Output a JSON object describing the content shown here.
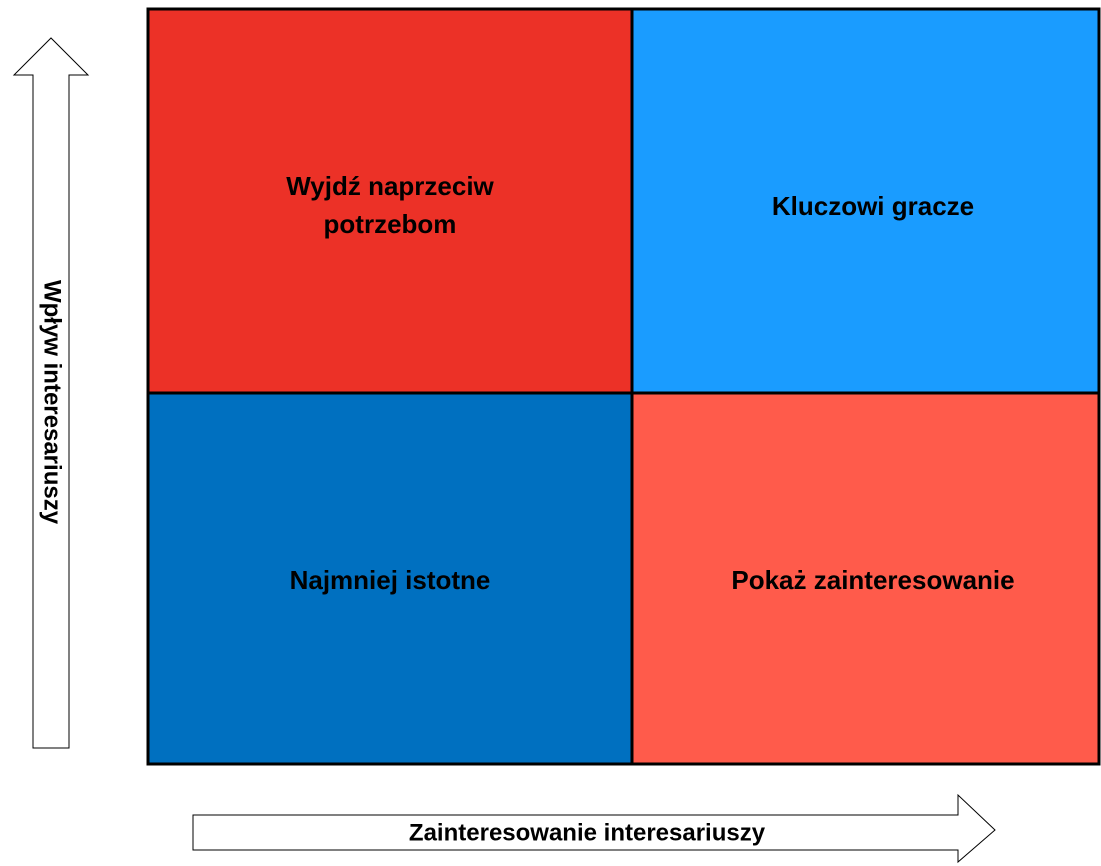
{
  "quadrants": [
    {
      "lines": [
        "Wyjdź naprzeciw",
        "potrzebom"
      ]
    },
    {
      "lines": [
        "Kluczowi gracze"
      ]
    },
    {
      "lines": [
        "Najmniej istotne"
      ]
    },
    {
      "lines": [
        "Pokaż zainteresowanie"
      ]
    }
  ],
  "y_axis_label": "Wpływ interesariuszy",
  "x_axis_label": "Zainteresowanie interesariuszy"
}
